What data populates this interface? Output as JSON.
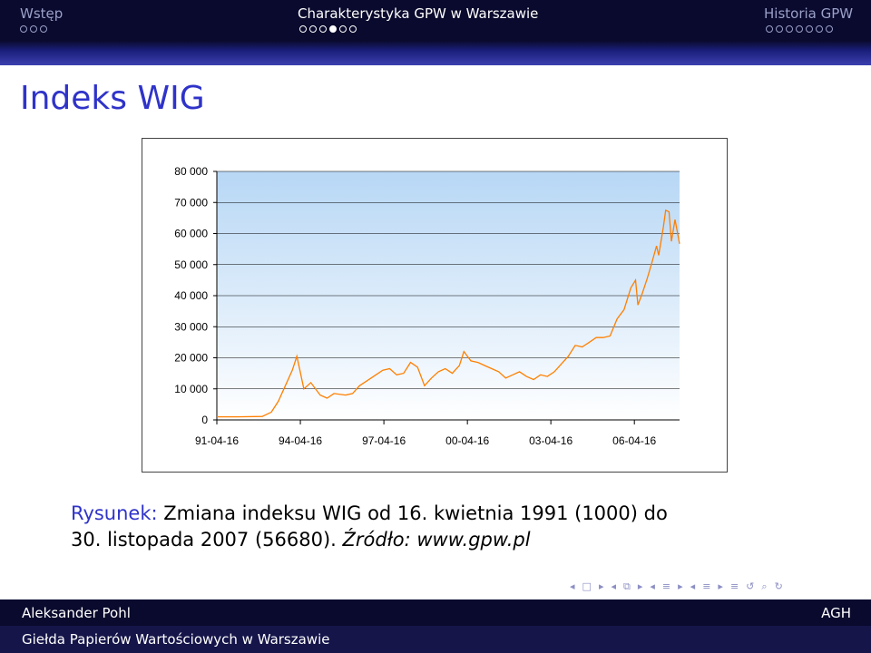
{
  "nav": {
    "sections": [
      {
        "label": "Wstęp",
        "dots": 3,
        "current": -1
      },
      {
        "label": "Charakterystyka GPW w Warszawie",
        "dots": 6,
        "current": 3
      },
      {
        "label": "Historia GPW",
        "dots": 7,
        "current": -1
      }
    ]
  },
  "frame": {
    "title": "Indeks WIG"
  },
  "caption": {
    "label": "Rysunek:",
    "line1": "Zmiana indeksu WIG od 16. kwietnia 1991 (1000) do",
    "line2": "30. listopada 2007 (56680).",
    "source": "Źródło: www.gpw.pl"
  },
  "footer": {
    "author": "Aleksander Pohl",
    "institute": "AGH",
    "title": "Giełda Papierów Wartościowych w Warszawie"
  },
  "beamer_nav_icons": [
    "arrow-left-icon",
    "frame-icon",
    "arrow-right-icon",
    "arrow-left-icon",
    "subsection-icon",
    "arrow-right-icon",
    "arrow-left-icon",
    "section-icon",
    "arrow-right-icon",
    "arrow-left-icon",
    "document-icon",
    "arrow-right-icon",
    "align-icon",
    "back-icon",
    "search-icon",
    "forward-icon"
  ],
  "colors": {
    "accent": "#2f33c9",
    "line": "#ff7f00",
    "plot_bg_top": "#b7d7f5",
    "plot_bg_bottom": "#ffffff"
  },
  "chart_data": {
    "type": "line",
    "title": "",
    "xlabel": "",
    "ylabel": "",
    "x_tick_labels": [
      "91-04-16",
      "94-04-16",
      "97-04-16",
      "00-04-16",
      "03-04-16",
      "06-04-16"
    ],
    "y_tick_labels": [
      "0",
      "10 000",
      "20 000",
      "30 000",
      "40 000",
      "50 000",
      "60 000",
      "70 000",
      "80 000"
    ],
    "ylim": [
      0,
      80000
    ],
    "xlim": [
      "1991-04-16",
      "2007-11-30"
    ],
    "grid": "horizontal",
    "legend": "none",
    "series": [
      {
        "values": [
          {
            "x": "1991-04-16",
            "y": 1000
          },
          {
            "x": "1992-01-01",
            "y": 1000
          },
          {
            "x": "1992-12-01",
            "y": 1100
          },
          {
            "x": "1993-04-01",
            "y": 2500
          },
          {
            "x": "1993-07-01",
            "y": 6000
          },
          {
            "x": "1993-10-01",
            "y": 11000
          },
          {
            "x": "1994-01-01",
            "y": 16000
          },
          {
            "x": "1994-03-01",
            "y": 20500
          },
          {
            "x": "1994-04-01",
            "y": 17000
          },
          {
            "x": "1994-06-01",
            "y": 10000
          },
          {
            "x": "1994-09-01",
            "y": 12000
          },
          {
            "x": "1995-01-01",
            "y": 8000
          },
          {
            "x": "1995-04-01",
            "y": 7000
          },
          {
            "x": "1995-07-01",
            "y": 8500
          },
          {
            "x": "1995-12-01",
            "y": 8000
          },
          {
            "x": "1996-03-01",
            "y": 8500
          },
          {
            "x": "1996-06-01",
            "y": 11000
          },
          {
            "x": "1996-09-01",
            "y": 12500
          },
          {
            "x": "1997-01-01",
            "y": 14500
          },
          {
            "x": "1997-04-01",
            "y": 16000
          },
          {
            "x": "1997-07-01",
            "y": 16500
          },
          {
            "x": "1997-10-01",
            "y": 14500
          },
          {
            "x": "1998-01-01",
            "y": 15000
          },
          {
            "x": "1998-04-01",
            "y": 18500
          },
          {
            "x": "1998-07-01",
            "y": 17000
          },
          {
            "x": "1998-10-01",
            "y": 11000
          },
          {
            "x": "1999-01-01",
            "y": 13500
          },
          {
            "x": "1999-04-01",
            "y": 15500
          },
          {
            "x": "1999-07-01",
            "y": 16500
          },
          {
            "x": "1999-10-01",
            "y": 15000
          },
          {
            "x": "2000-01-01",
            "y": 17500
          },
          {
            "x": "2000-03-01",
            "y": 22000
          },
          {
            "x": "2000-06-01",
            "y": 19000
          },
          {
            "x": "2000-09-01",
            "y": 18500
          },
          {
            "x": "2000-12-01",
            "y": 17500
          },
          {
            "x": "2001-03-01",
            "y": 16500
          },
          {
            "x": "2001-06-01",
            "y": 15500
          },
          {
            "x": "2001-09-01",
            "y": 13500
          },
          {
            "x": "2001-12-01",
            "y": 14500
          },
          {
            "x": "2002-03-01",
            "y": 15500
          },
          {
            "x": "2002-06-01",
            "y": 14000
          },
          {
            "x": "2002-09-01",
            "y": 13000
          },
          {
            "x": "2002-12-01",
            "y": 14500
          },
          {
            "x": "2003-03-01",
            "y": 14000
          },
          {
            "x": "2003-06-01",
            "y": 15500
          },
          {
            "x": "2003-09-01",
            "y": 18000
          },
          {
            "x": "2003-12-01",
            "y": 20500
          },
          {
            "x": "2004-03-01",
            "y": 24000
          },
          {
            "x": "2004-06-01",
            "y": 23500
          },
          {
            "x": "2004-09-01",
            "y": 25000
          },
          {
            "x": "2004-12-01",
            "y": 26500
          },
          {
            "x": "2005-03-01",
            "y": 26500
          },
          {
            "x": "2005-06-01",
            "y": 27000
          },
          {
            "x": "2005-09-01",
            "y": 32500
          },
          {
            "x": "2005-12-01",
            "y": 35500
          },
          {
            "x": "2006-03-01",
            "y": 42500
          },
          {
            "x": "2006-05-01",
            "y": 45000
          },
          {
            "x": "2006-06-01",
            "y": 37000
          },
          {
            "x": "2006-08-01",
            "y": 41000
          },
          {
            "x": "2006-10-01",
            "y": 45500
          },
          {
            "x": "2006-12-01",
            "y": 50500
          },
          {
            "x": "2007-02-01",
            "y": 56000
          },
          {
            "x": "2007-03-01",
            "y": 53000
          },
          {
            "x": "2007-05-01",
            "y": 62000
          },
          {
            "x": "2007-06-01",
            "y": 67500
          },
          {
            "x": "2007-07-15",
            "y": 67000
          },
          {
            "x": "2007-08-15",
            "y": 57500
          },
          {
            "x": "2007-10-01",
            "y": 64500
          },
          {
            "x": "2007-11-30",
            "y": 56680
          }
        ]
      }
    ]
  }
}
